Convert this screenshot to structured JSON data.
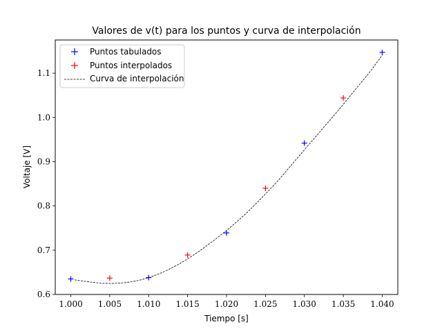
{
  "chart_data": {
    "type": "line",
    "title": "Valores de v(t) para los puntos y curva de interpolación",
    "xlabel": "Tiempo [s]",
    "ylabel": "Voltaje [V]",
    "xlim": [
      0.998,
      1.042
    ],
    "ylim": [
      0.6,
      1.175
    ],
    "xticks": [
      1.0,
      1.005,
      1.01,
      1.015,
      1.02,
      1.025,
      1.03,
      1.035,
      1.04
    ],
    "xtick_labels": [
      "1.000",
      "1.005",
      "1.010",
      "1.015",
      "1.020",
      "1.025",
      "1.030",
      "1.035",
      "1.040"
    ],
    "yticks": [
      0.6,
      0.7,
      0.8,
      0.9,
      1.0,
      1.1
    ],
    "ytick_labels": [
      "0.6",
      "0.7",
      "0.8",
      "0.9",
      "1.0",
      "1.1"
    ],
    "grid": false,
    "legend_position": "top-left",
    "series": [
      {
        "name": "Puntos tabulados",
        "style": "marker-plus",
        "color": "#0000ff",
        "x": [
          1.0,
          1.01,
          1.02,
          1.03,
          1.04
        ],
        "y": [
          0.635,
          0.638,
          0.739,
          0.942,
          1.147
        ]
      },
      {
        "name": "Puntos interpolados",
        "style": "marker-plus",
        "color": "#ff0000",
        "x": [
          1.005,
          1.015,
          1.025,
          1.035
        ],
        "y": [
          0.637,
          0.689,
          0.84,
          1.044
        ]
      },
      {
        "name": "Curva de interpolación",
        "style": "dashed-line",
        "color": "#000000",
        "x": [
          1.0005,
          1.0025,
          1.0045,
          1.0065,
          1.0085,
          1.0105,
          1.0125,
          1.0145,
          1.0165,
          1.0185,
          1.0205,
          1.0225,
          1.0245,
          1.0265,
          1.0285,
          1.0305,
          1.0325,
          1.0345,
          1.0365,
          1.0385,
          1.04
        ],
        "y": [
          0.633,
          0.628,
          0.625,
          0.626,
          0.631,
          0.641,
          0.656,
          0.675,
          0.698,
          0.724,
          0.752,
          0.783,
          0.818,
          0.855,
          0.896,
          0.937,
          0.978,
          1.019,
          1.062,
          1.105,
          1.141
        ]
      }
    ]
  }
}
